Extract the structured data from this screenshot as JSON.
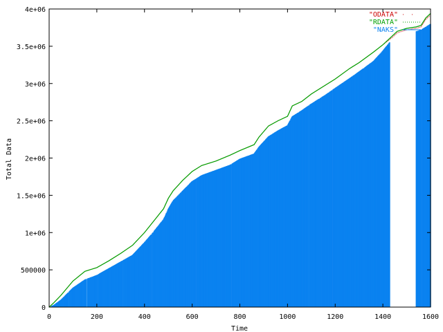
{
  "chart_data": {
    "type": "line",
    "title": "",
    "xlabel": "Time",
    "ylabel": "Total Data",
    "xlim": [
      0,
      1600
    ],
    "ylim": [
      0,
      4000000
    ],
    "x_ticks": [
      "0",
      "200",
      "400",
      "600",
      "800",
      "1000",
      "1200",
      "1400",
      "1600"
    ],
    "y_ticks": [
      "0",
      "500000",
      "1e+06",
      "1.5e+06",
      "2e+06",
      "2.5e+06",
      "3e+06",
      "3.5e+06",
      "4e+06"
    ],
    "grid": false,
    "legend_position": "top-right",
    "series": [
      {
        "name": "\"ODATA\"",
        "color": "#cc0000",
        "style": "dots",
        "points": [
          [
            0,
            0
          ],
          [
            20,
            60000
          ],
          [
            50,
            160000
          ],
          [
            100,
            350000
          ],
          [
            150,
            480000
          ],
          [
            200,
            530000
          ],
          [
            250,
            620000
          ],
          [
            300,
            720000
          ],
          [
            350,
            830000
          ],
          [
            400,
            1000000
          ],
          [
            430,
            1120000
          ],
          [
            450,
            1200000
          ],
          [
            480,
            1320000
          ],
          [
            500,
            1460000
          ],
          [
            520,
            1560000
          ],
          [
            560,
            1700000
          ],
          [
            600,
            1820000
          ],
          [
            640,
            1900000
          ],
          [
            700,
            1960000
          ],
          [
            760,
            2040000
          ],
          [
            800,
            2100000
          ],
          [
            860,
            2180000
          ],
          [
            880,
            2280000
          ],
          [
            920,
            2430000
          ],
          [
            960,
            2500000
          ],
          [
            1000,
            2560000
          ],
          [
            1020,
            2700000
          ],
          [
            1060,
            2760000
          ],
          [
            1100,
            2860000
          ],
          [
            1160,
            2980000
          ],
          [
            1200,
            3060000
          ],
          [
            1260,
            3200000
          ],
          [
            1300,
            3280000
          ],
          [
            1360,
            3420000
          ],
          [
            1400,
            3520000
          ],
          [
            1440,
            3620000
          ],
          [
            1460,
            3680000
          ],
          [
            1500,
            3720000
          ],
          [
            1540,
            3740000
          ],
          [
            1560,
            3760000
          ],
          [
            1580,
            3860000
          ],
          [
            1600,
            3920000
          ]
        ]
      },
      {
        "name": "\"RDATA\"",
        "color": "#00a000",
        "style": "line",
        "points": [
          [
            0,
            0
          ],
          [
            20,
            60000
          ],
          [
            50,
            160000
          ],
          [
            100,
            350000
          ],
          [
            150,
            480000
          ],
          [
            200,
            530000
          ],
          [
            250,
            620000
          ],
          [
            300,
            720000
          ],
          [
            350,
            830000
          ],
          [
            400,
            1000000
          ],
          [
            430,
            1120000
          ],
          [
            450,
            1200000
          ],
          [
            480,
            1320000
          ],
          [
            500,
            1460000
          ],
          [
            520,
            1560000
          ],
          [
            560,
            1700000
          ],
          [
            600,
            1820000
          ],
          [
            640,
            1900000
          ],
          [
            700,
            1960000
          ],
          [
            760,
            2040000
          ],
          [
            800,
            2100000
          ],
          [
            860,
            2180000
          ],
          [
            880,
            2280000
          ],
          [
            920,
            2430000
          ],
          [
            960,
            2500000
          ],
          [
            1000,
            2560000
          ],
          [
            1020,
            2700000
          ],
          [
            1060,
            2760000
          ],
          [
            1100,
            2860000
          ],
          [
            1160,
            2980000
          ],
          [
            1200,
            3060000
          ],
          [
            1260,
            3200000
          ],
          [
            1300,
            3280000
          ],
          [
            1360,
            3420000
          ],
          [
            1400,
            3520000
          ],
          [
            1440,
            3640000
          ],
          [
            1460,
            3700000
          ],
          [
            1500,
            3740000
          ],
          [
            1540,
            3760000
          ],
          [
            1560,
            3780000
          ],
          [
            1580,
            3880000
          ],
          [
            1600,
            3940000
          ]
        ]
      },
      {
        "name": "\"NAKS\"",
        "color": "#0a82f0",
        "style": "impulses",
        "points": [
          [
            0,
            0
          ],
          [
            20,
            30000
          ],
          [
            50,
            100000
          ],
          [
            100,
            260000
          ],
          [
            150,
            370000
          ],
          [
            200,
            430000
          ],
          [
            250,
            520000
          ],
          [
            300,
            610000
          ],
          [
            350,
            700000
          ],
          [
            400,
            870000
          ],
          [
            430,
            980000
          ],
          [
            450,
            1060000
          ],
          [
            480,
            1180000
          ],
          [
            500,
            1320000
          ],
          [
            520,
            1430000
          ],
          [
            560,
            1560000
          ],
          [
            600,
            1690000
          ],
          [
            640,
            1770000
          ],
          [
            700,
            1840000
          ],
          [
            760,
            1910000
          ],
          [
            800,
            1990000
          ],
          [
            860,
            2060000
          ],
          [
            880,
            2150000
          ],
          [
            920,
            2290000
          ],
          [
            960,
            2370000
          ],
          [
            1000,
            2440000
          ],
          [
            1020,
            2560000
          ],
          [
            1060,
            2640000
          ],
          [
            1100,
            2730000
          ],
          [
            1160,
            2850000
          ],
          [
            1200,
            2940000
          ],
          [
            1260,
            3070000
          ],
          [
            1300,
            3160000
          ],
          [
            1360,
            3300000
          ],
          [
            1400,
            3440000
          ],
          [
            1430,
            3560000
          ],
          [
            1540,
            3700000
          ],
          [
            1560,
            3720000
          ],
          [
            1580,
            3760000
          ],
          [
            1600,
            3800000
          ]
        ]
      }
    ]
  }
}
